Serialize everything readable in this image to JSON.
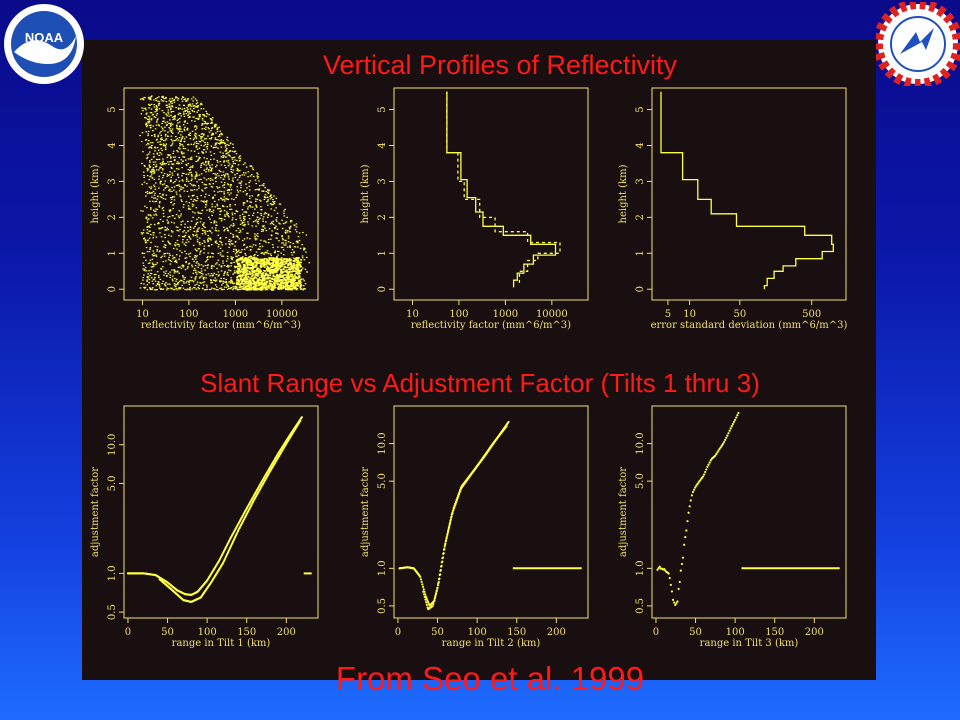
{
  "titles": {
    "top": "Vertical Profiles of Reflectivity",
    "middle": "Slant Range vs Adjustment Factor (Tilts 1 thru 3)",
    "bottom": "From Seo et al. 1999"
  },
  "logos": {
    "left": "noaa-logo",
    "right": "nws-logo"
  },
  "colors": {
    "plot": "#ffff44",
    "axis": "#f0e070",
    "title": "#ff1a1a",
    "panel": "#1a0f10"
  },
  "chart_data": [
    {
      "id": "vpr-scatter",
      "type": "scatter",
      "xlabel": "reflectivity factor (mm^6/m^3)",
      "ylabel": "height (km)",
      "xscale": "log",
      "xlim": [
        4,
        60000
      ],
      "ylim": [
        -0.3,
        5.6
      ],
      "xticks": [
        10,
        100,
        1000,
        10000
      ],
      "xticklabels": [
        "10",
        "100",
        "1000",
        "10000"
      ],
      "yticks": [
        0,
        1,
        2,
        3,
        4,
        5
      ],
      "yticklabels": [
        "0",
        "1",
        "2",
        "3",
        "4",
        "5"
      ],
      "series": [
        {
          "style": "dots",
          "points": [
            [
              10,
              5.3
            ],
            [
              20,
              5.1
            ],
            [
              50,
              4.8
            ],
            [
              15,
              4.5
            ],
            [
              100,
              4.3
            ],
            [
              30,
              4.0
            ],
            [
              200,
              3.8
            ],
            [
              60,
              3.5
            ],
            [
              300,
              3.3
            ],
            [
              25,
              3.0
            ],
            [
              800,
              2.9
            ],
            [
              120,
              2.6
            ],
            [
              1500,
              2.4
            ],
            [
              40,
              2.2
            ],
            [
              3000,
              2.0
            ],
            [
              200,
              1.8
            ],
            [
              6000,
              1.5
            ],
            [
              500,
              1.3
            ],
            [
              15000,
              1.2
            ],
            [
              30000,
              1.1
            ],
            [
              10,
              1.0
            ],
            [
              2000,
              0.9
            ],
            [
              20000,
              0.8
            ],
            [
              8000,
              0.6
            ],
            [
              50,
              0.5
            ],
            [
              12000,
              0.4
            ],
            [
              3000,
              0.2
            ],
            [
              20000,
              0.1
            ],
            [
              15,
              0.0
            ],
            [
              6000,
              0.0
            ]
          ]
        }
      ]
    },
    {
      "id": "vpr-mean",
      "type": "line",
      "xlabel": "reflectivity factor (mm^6/m^3)",
      "ylabel": "height (km)",
      "xscale": "log",
      "xlim": [
        4,
        60000
      ],
      "ylim": [
        -0.3,
        5.6
      ],
      "xticks": [
        10,
        100,
        1000,
        10000
      ],
      "xticklabels": [
        "10",
        "100",
        "1000",
        "10000"
      ],
      "yticks": [
        0,
        1,
        2,
        3,
        4,
        5
      ],
      "yticklabels": [
        "0",
        "1",
        "2",
        "3",
        "4",
        "5"
      ],
      "series": [
        {
          "style": "step",
          "points": [
            [
              55,
              5.5
            ],
            [
              55,
              3.8
            ],
            [
              110,
              3.8
            ],
            [
              110,
              3.05
            ],
            [
              150,
              3.05
            ],
            [
              150,
              2.55
            ],
            [
              230,
              2.55
            ],
            [
              230,
              2.15
            ],
            [
              330,
              2.15
            ],
            [
              330,
              1.75
            ],
            [
              900,
              1.75
            ],
            [
              900,
              1.5
            ],
            [
              3500,
              1.5
            ],
            [
              3500,
              1.25
            ],
            [
              12000,
              1.25
            ],
            [
              12000,
              0.95
            ],
            [
              4000,
              0.95
            ],
            [
              4000,
              0.7
            ],
            [
              2500,
              0.7
            ],
            [
              2500,
              0.45
            ],
            [
              1800,
              0.45
            ],
            [
              1800,
              0.25
            ],
            [
              1500,
              0.25
            ],
            [
              1500,
              0.05
            ]
          ]
        },
        {
          "style": "dashed",
          "points": [
            [
              55,
              5.5
            ],
            [
              55,
              3.8
            ],
            [
              95,
              3.8
            ],
            [
              95,
              3.0
            ],
            [
              130,
              3.0
            ],
            [
              130,
              2.5
            ],
            [
              280,
              2.5
            ],
            [
              280,
              2.0
            ],
            [
              600,
              2.0
            ],
            [
              600,
              1.6
            ],
            [
              3000,
              1.6
            ],
            [
              3000,
              1.3
            ],
            [
              15000,
              1.3
            ],
            [
              15000,
              1.0
            ],
            [
              5000,
              1.0
            ],
            [
              5000,
              0.8
            ],
            [
              3000,
              0.8
            ],
            [
              3000,
              0.5
            ],
            [
              2000,
              0.5
            ],
            [
              2000,
              0.1
            ]
          ]
        }
      ]
    },
    {
      "id": "vpr-std",
      "type": "line",
      "xlabel": "error standard deviation (mm^6/m^3)",
      "ylabel": "height (km)",
      "xscale": "log",
      "xlim": [
        3,
        1500
      ],
      "ylim": [
        -0.3,
        5.6
      ],
      "xticks": [
        5,
        10,
        50,
        500
      ],
      "xticklabels": [
        "5",
        "10",
        "50",
        "500"
      ],
      "yticks": [
        0,
        1,
        2,
        3,
        4,
        5
      ],
      "yticklabels": [
        "0",
        "1",
        "2",
        "3",
        "4",
        "5"
      ],
      "series": [
        {
          "style": "step",
          "points": [
            [
              4,
              5.5
            ],
            [
              4,
              3.8
            ],
            [
              8,
              3.8
            ],
            [
              8,
              3.05
            ],
            [
              13,
              3.05
            ],
            [
              13,
              2.5
            ],
            [
              20,
              2.5
            ],
            [
              20,
              2.1
            ],
            [
              45,
              2.1
            ],
            [
              45,
              1.75
            ],
            [
              400,
              1.75
            ],
            [
              400,
              1.5
            ],
            [
              950,
              1.5
            ],
            [
              950,
              1.25
            ],
            [
              1000,
              1.25
            ],
            [
              1000,
              1.05
            ],
            [
              700,
              1.05
            ],
            [
              700,
              0.85
            ],
            [
              300,
              0.85
            ],
            [
              300,
              0.65
            ],
            [
              200,
              0.65
            ],
            [
              200,
              0.5
            ],
            [
              150,
              0.5
            ],
            [
              150,
              0.3
            ],
            [
              120,
              0.3
            ],
            [
              120,
              0.1
            ],
            [
              110,
              0.1
            ],
            [
              110,
              0.0
            ]
          ]
        }
      ]
    },
    {
      "id": "tilt1",
      "type": "scatter",
      "xlabel": "range in Tilt 1 (km)",
      "ylabel": "adjustment factor",
      "xlim": [
        -5,
        240
      ],
      "ylim": [
        0.45,
        20
      ],
      "yscale": "log",
      "xticks": [
        0,
        50,
        100,
        150,
        200
      ],
      "xticklabels": [
        "0",
        "50",
        "100",
        "150",
        "200"
      ],
      "yticks": [
        0.5,
        1.0,
        5.0,
        10.0
      ],
      "yticklabels": [
        "0.5",
        "1.0",
        "5.0",
        "10.0"
      ],
      "series": [
        {
          "style": "dense-curve",
          "points": [
            [
              0,
              1.0
            ],
            [
              20,
              1.0
            ],
            [
              35,
              0.97
            ],
            [
              50,
              0.85
            ],
            [
              62,
              0.74
            ],
            [
              72,
              0.69
            ],
            [
              80,
              0.68
            ],
            [
              88,
              0.72
            ],
            [
              100,
              0.88
            ],
            [
              115,
              1.25
            ],
            [
              130,
              1.9
            ],
            [
              150,
              3.2
            ],
            [
              170,
              5.3
            ],
            [
              190,
              8.6
            ],
            [
              205,
              12.0
            ],
            [
              220,
              16.5
            ]
          ]
        },
        {
          "style": "dense-curve",
          "points": [
            [
              40,
              0.9
            ],
            [
              55,
              0.75
            ],
            [
              70,
              0.62
            ],
            [
              80,
              0.6
            ],
            [
              92,
              0.65
            ],
            [
              105,
              0.85
            ],
            [
              120,
              1.2
            ],
            [
              140,
              2.2
            ],
            [
              160,
              3.8
            ],
            [
              180,
              6.3
            ],
            [
              200,
              10.2
            ],
            [
              218,
              15.5
            ]
          ]
        },
        {
          "style": "segment",
          "points": [
            [
              222,
              1.0
            ],
            [
              232,
              1.0
            ]
          ]
        }
      ]
    },
    {
      "id": "tilt2",
      "type": "scatter",
      "xlabel": "range in Tilt 2 (km)",
      "ylabel": "adjustment factor",
      "xlim": [
        -5,
        240
      ],
      "ylim": [
        0.4,
        20
      ],
      "yscale": "log",
      "xticks": [
        0,
        50,
        100,
        150,
        200
      ],
      "xticklabels": [
        "0",
        "50",
        "100",
        "150",
        "200"
      ],
      "yticks": [
        0.5,
        1.0,
        5.0,
        10.0
      ],
      "yticklabels": [
        "0.5",
        "1.0",
        "5.0",
        "10.0"
      ],
      "series": [
        {
          "style": "dense-curve",
          "points": [
            [
              2,
              1.0
            ],
            [
              12,
              1.02
            ],
            [
              20,
              1.0
            ],
            [
              28,
              0.86
            ],
            [
              35,
              0.6
            ],
            [
              40,
              0.5
            ],
            [
              46,
              0.55
            ],
            [
              52,
              0.8
            ],
            [
              60,
              1.6
            ],
            [
              70,
              3.0
            ],
            [
              80,
              4.5
            ],
            [
              95,
              6.0
            ],
            [
              110,
              8.0
            ],
            [
              125,
              11.0
            ],
            [
              140,
              15.0
            ]
          ]
        },
        {
          "style": "dense-curve",
          "points": [
            [
              32,
              0.65
            ],
            [
              38,
              0.47
            ],
            [
              44,
              0.5
            ],
            [
              50,
              0.7
            ],
            [
              58,
              1.4
            ],
            [
              68,
              2.7
            ],
            [
              80,
              4.4
            ],
            [
              100,
              6.6
            ],
            [
              120,
              10.0
            ],
            [
              138,
              14.0
            ]
          ]
        },
        {
          "style": "segment",
          "points": [
            [
              145,
              1.0
            ],
            [
              232,
              1.0
            ]
          ]
        }
      ]
    },
    {
      "id": "tilt3",
      "type": "scatter",
      "xlabel": "range in Tilt 3 (km)",
      "ylabel": "adjustment factor",
      "xlim": [
        -5,
        240
      ],
      "ylim": [
        0.4,
        20
      ],
      "yscale": "log",
      "xticks": [
        0,
        50,
        100,
        150,
        200
      ],
      "xticklabels": [
        "0",
        "50",
        "100",
        "150",
        "200"
      ],
      "yticks": [
        0.5,
        1.0,
        5.0,
        10.0
      ],
      "yticklabels": [
        "0.5",
        "1.0",
        "5.0",
        "10.0"
      ],
      "series": [
        {
          "style": "sparse-points",
          "points": [
            [
              2,
              1.0
            ],
            [
              6,
              1.0
            ],
            [
              10,
              1.02
            ],
            [
              15,
              0.92
            ],
            [
              18,
              0.8
            ],
            [
              20,
              0.65
            ],
            [
              22,
              0.55
            ],
            [
              24,
              0.5
            ],
            [
              25,
              0.48
            ],
            [
              27,
              0.55
            ],
            [
              30,
              0.8
            ],
            [
              32,
              1.0
            ],
            [
              34,
              1.2
            ],
            [
              36,
              1.6
            ],
            [
              38,
              2.0
            ],
            [
              40,
              2.5
            ],
            [
              42,
              3.0
            ],
            [
              44,
              3.5
            ],
            [
              46,
              4.0
            ],
            [
              50,
              4.5
            ],
            [
              55,
              5.0
            ],
            [
              60,
              5.5
            ],
            [
              65,
              6.5
            ],
            [
              70,
              7.5
            ],
            [
              75,
              8.0
            ],
            [
              80,
              9.0
            ],
            [
              85,
              10.0
            ],
            [
              90,
              11.5
            ],
            [
              95,
              13.5
            ],
            [
              100,
              15.5
            ],
            [
              105,
              18.0
            ]
          ]
        },
        {
          "style": "segment",
          "points": [
            [
              108,
              1.0
            ],
            [
              232,
              1.0
            ]
          ]
        }
      ]
    }
  ]
}
